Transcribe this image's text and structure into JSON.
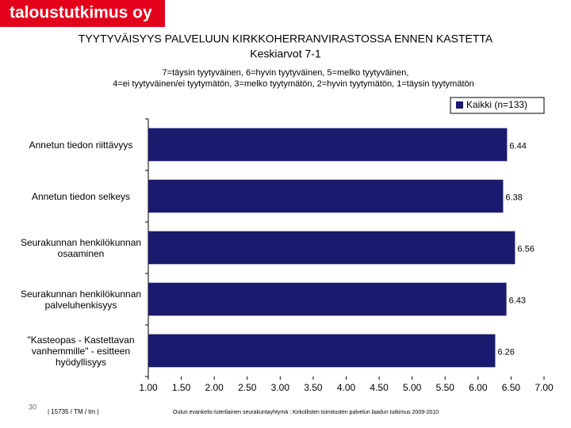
{
  "header": {
    "logo": "taloustutkimus oy"
  },
  "chart_data": {
    "type": "hbar",
    "title": "TYYTYVÄISYYS PALVELUUN KIRKKOHERRANVIRASTOSSA ENNEN KASTETTA",
    "subtitle": "Keskiarvot 7-1",
    "note_lines": [
      "7=täysin tyytyväinen, 6=hyvin tyytyväinen, 5=melko tyytyväinen,",
      "4=ei tyytyväinen/ei tyytymätön, 3=melko tyytymätön, 2=hyvin tyytymätön, 1=täysin tyytymätön"
    ],
    "categories": [
      "Annetun tiedon riittävyys",
      "Annetun tiedon selkeys",
      "Seurakunnan henkilökunnan osaaminen",
      "Seurakunnan henkilökunnan palveluhenkisyys",
      "\"Kasteopas - Kastettavan vanhemmille\" - esitteen hyödyllisyys"
    ],
    "series": [
      {
        "name": "Kaikki (n=133)",
        "color": "#1a1a6e",
        "values": [
          6.44,
          6.38,
          6.56,
          6.43,
          6.26
        ]
      }
    ],
    "xlim": [
      1,
      7
    ],
    "xticks": [
      {
        "value": 1,
        "label": "1.00"
      },
      {
        "value": 1.5,
        "label": "1.50"
      },
      {
        "value": 2,
        "label": "2.00"
      },
      {
        "value": 2.5,
        "label": "2.50"
      },
      {
        "value": 3,
        "label": "3.00"
      },
      {
        "value": 3.5,
        "label": "3.50"
      },
      {
        "value": 4,
        "label": "4.00"
      },
      {
        "value": 4.5,
        "label": "4.50"
      },
      {
        "value": 5,
        "label": "5.00"
      },
      {
        "value": 5.5,
        "label": "5.50"
      },
      {
        "value": 6,
        "label": "6.00"
      },
      {
        "value": 6.5,
        "label": "6.50"
      },
      {
        "value": 7,
        "label": "7.00"
      }
    ],
    "legend": "top-right"
  },
  "footer": {
    "page": "30",
    "code": "| 15735 / TM / tm |",
    "source": "Oulun evankelis-luterilainen seurakuntayhtymä : Kirkollisten toimitusten palvelun laadun tutkimus 2009-2010"
  }
}
